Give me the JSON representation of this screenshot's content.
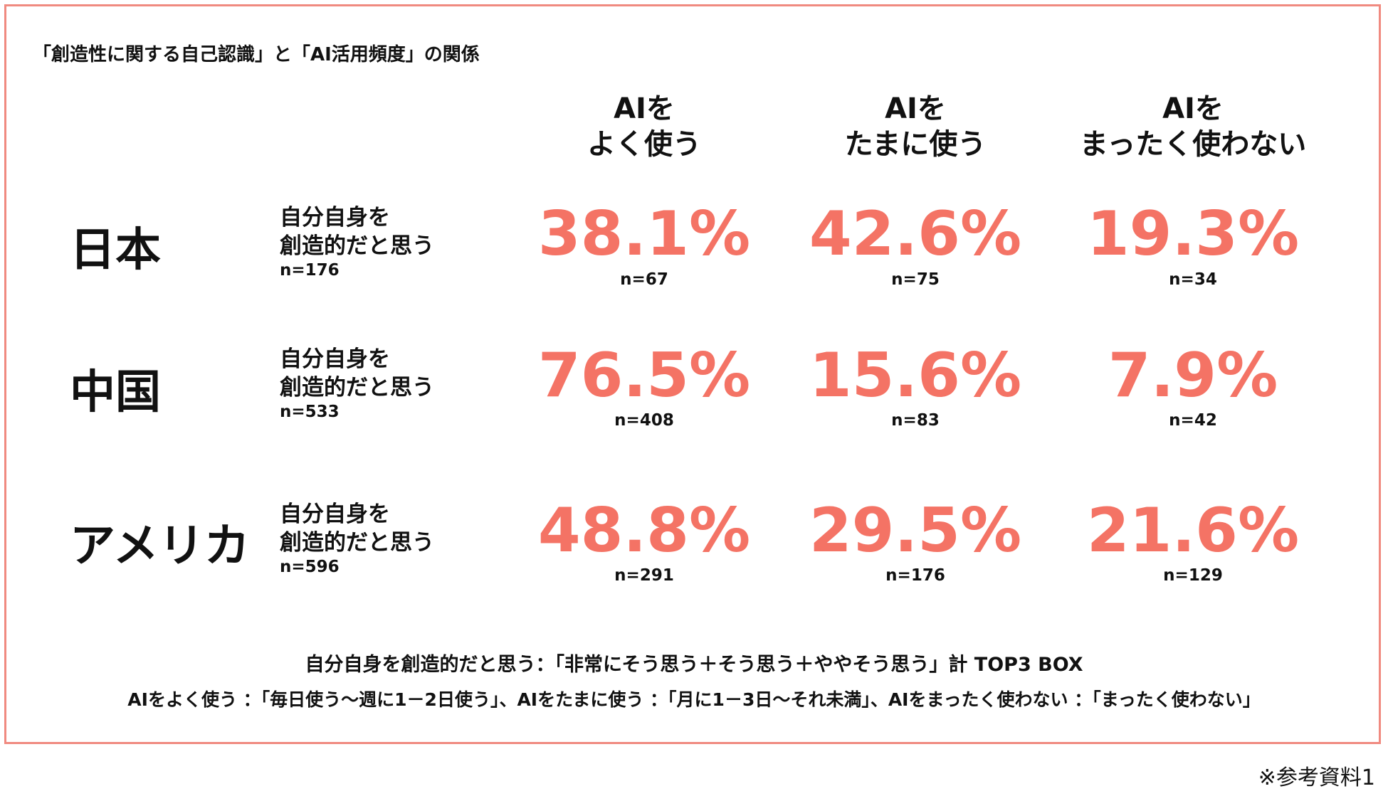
{
  "title": "「創造性に関する自己認識」と「AI活用頻度」の関係",
  "columns": [
    {
      "line1": "AIを",
      "line2": "よく使う"
    },
    {
      "line1": "AIを",
      "line2": "たまに使う"
    },
    {
      "line1": "AIを",
      "line2": "まったく使わない"
    }
  ],
  "rows": [
    {
      "country": "日本",
      "desc_line1": "自分自身を",
      "desc_line2": "創造的だと思う",
      "n": "n=176",
      "cells": [
        {
          "pct": "38.1%",
          "n": "n=67"
        },
        {
          "pct": "42.6%",
          "n": "n=75"
        },
        {
          "pct": "19.3%",
          "n": "n=34"
        }
      ]
    },
    {
      "country": "中国",
      "desc_line1": "自分自身を",
      "desc_line2": "創造的だと思う",
      "n": "n=533",
      "cells": [
        {
          "pct": "76.5%",
          "n": "n=408"
        },
        {
          "pct": "15.6%",
          "n": "n=83"
        },
        {
          "pct": "7.9%",
          "n": "n=42"
        }
      ]
    },
    {
      "country": "アメリカ",
      "desc_line1": "自分自身を",
      "desc_line2": "創造的だと思う",
      "n": "n=596",
      "cells": [
        {
          "pct": "48.8%",
          "n": "n=291"
        },
        {
          "pct": "29.5%",
          "n": "n=176"
        },
        {
          "pct": "21.6%",
          "n": "n=129"
        }
      ]
    }
  ],
  "notes": [
    "自分自身を創造的だと思う：「非常にそう思う＋そう思う＋ややそう思う」計 TOP3 BOX",
    "AIをよく使う ：「毎日使う～週に1－2日使う」、AIをたまに使う ：「月に1－3日～それ未満」、AIをまったく使わない ：「まったく使わない」"
  ],
  "source": "※参考資料1",
  "colors": {
    "accent": "#f47365",
    "border": "#f08a80"
  },
  "chart_data": {
    "type": "table",
    "title": "「創造性に関する自己認識」と「AI活用頻度」の関係",
    "columns": [
      "AIをよく使う",
      "AIをたまに使う",
      "AIをまったく使わない"
    ],
    "rows": [
      "日本",
      "中国",
      "アメリカ"
    ],
    "values": [
      [
        38.1,
        42.6,
        19.3
      ],
      [
        76.5,
        15.6,
        7.9
      ],
      [
        48.8,
        29.5,
        21.6
      ]
    ],
    "cell_n": [
      [
        67,
        75,
        34
      ],
      [
        408,
        83,
        42
      ],
      [
        291,
        176,
        129
      ]
    ],
    "row_n": [
      176,
      533,
      596
    ]
  }
}
